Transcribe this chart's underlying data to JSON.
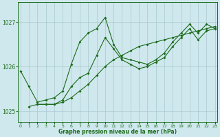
{
  "xlabel": "Graphe pression niveau de la mer (hPa)",
  "xlim": [
    -0.3,
    23.3
  ],
  "ylim": [
    1024.75,
    1027.45
  ],
  "yticks": [
    1025,
    1026,
    1027
  ],
  "xticks": [
    0,
    1,
    2,
    3,
    4,
    5,
    6,
    7,
    8,
    9,
    10,
    11,
    12,
    13,
    14,
    15,
    16,
    17,
    18,
    19,
    20,
    21,
    22,
    23
  ],
  "bg_color": "#cfe8ed",
  "line_color": "#1a6b1a",
  "grid_color": "#a8c8cc",
  "series": [
    {
      "x": [
        0,
        1,
        2,
        3,
        4,
        5,
        6,
        7,
        8,
        9,
        10,
        11,
        12,
        13,
        14,
        15,
        16,
        17,
        18,
        19,
        20,
        21,
        22,
        23
      ],
      "y": [
        1025.9,
        1025.55,
        1025.2,
        1025.25,
        1025.3,
        1025.45,
        1026.05,
        1026.55,
        1026.75,
        1026.85,
        1027.1,
        1026.5,
        1026.2,
        1026.15,
        1026.1,
        1026.05,
        1026.15,
        1026.3,
        1026.55,
        1026.75,
        1026.95,
        1026.75,
        1026.95,
        1026.85
      ]
    },
    {
      "x": [
        1,
        2,
        3,
        4,
        5,
        6,
        7,
        8,
        9,
        10,
        11,
        12,
        13,
        14,
        15,
        16,
        17,
        18,
        19,
        20,
        21,
        22,
        23
      ],
      "y": [
        1025.1,
        1025.15,
        1025.15,
        1025.15,
        1025.2,
        1025.3,
        1025.45,
        1025.6,
        1025.8,
        1026.0,
        1026.15,
        1026.25,
        1026.35,
        1026.45,
        1026.5,
        1026.55,
        1026.6,
        1026.65,
        1026.7,
        1026.75,
        1026.8,
        1026.85,
        1026.9
      ]
    },
    {
      "x": [
        2,
        3,
        4,
        5,
        6,
        7,
        8,
        9,
        10,
        11,
        12,
        13,
        14,
        15,
        16,
        17,
        18,
        19,
        20,
        21,
        22,
        23
      ],
      "y": [
        1025.15,
        1025.15,
        1025.15,
        1025.25,
        1025.55,
        1025.75,
        1025.85,
        1026.25,
        1026.65,
        1026.4,
        1026.15,
        1026.05,
        1025.95,
        1026.0,
        1026.1,
        1026.2,
        1026.45,
        1026.65,
        1026.85,
        1026.6,
        1026.8,
        1026.85
      ]
    }
  ],
  "figsize": [
    3.2,
    2.0
  ],
  "dpi": 100
}
